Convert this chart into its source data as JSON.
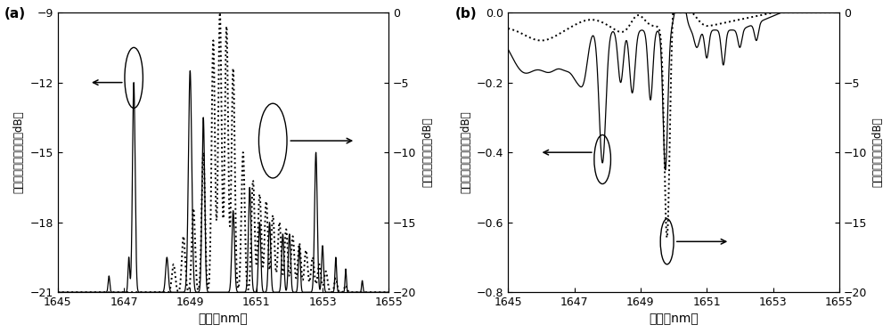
{
  "fig_width": 10.0,
  "fig_height": 3.74,
  "dpi": 100,
  "panel_a": {
    "label": "(a)",
    "xlim": [
      1645,
      1655
    ],
    "xticks": [
      1645,
      1647,
      1649,
      1651,
      1653,
      1655
    ],
    "left_ylim": [
      -21,
      -9
    ],
    "left_yticks": [
      -21,
      -18,
      -15,
      -12,
      -9
    ],
    "right_ylim": [
      -20,
      0
    ],
    "right_yticks": [
      -20,
      -15,
      -10,
      -5,
      0
    ],
    "xlabel": "波长（nm）",
    "left_ylabel": "光纤随机光栅反射率（dB）",
    "right_ylabel": "高反光栅反射率（dB）"
  },
  "panel_b": {
    "label": "(b)",
    "xlim": [
      1645,
      1655
    ],
    "xticks": [
      1645,
      1647,
      1649,
      1651,
      1653,
      1655
    ],
    "left_ylim": [
      -0.8,
      0
    ],
    "left_yticks": [
      -0.8,
      -0.6,
      -0.4,
      -0.2,
      0
    ],
    "right_ylim": [
      -20,
      0
    ],
    "right_yticks": [
      -20,
      -15,
      -10,
      -5,
      0
    ],
    "xlabel": "波长（nm）",
    "left_ylabel": "光纤随机光栅透射率（dB）",
    "right_ylabel": "高反光栅透射率（dB）"
  }
}
